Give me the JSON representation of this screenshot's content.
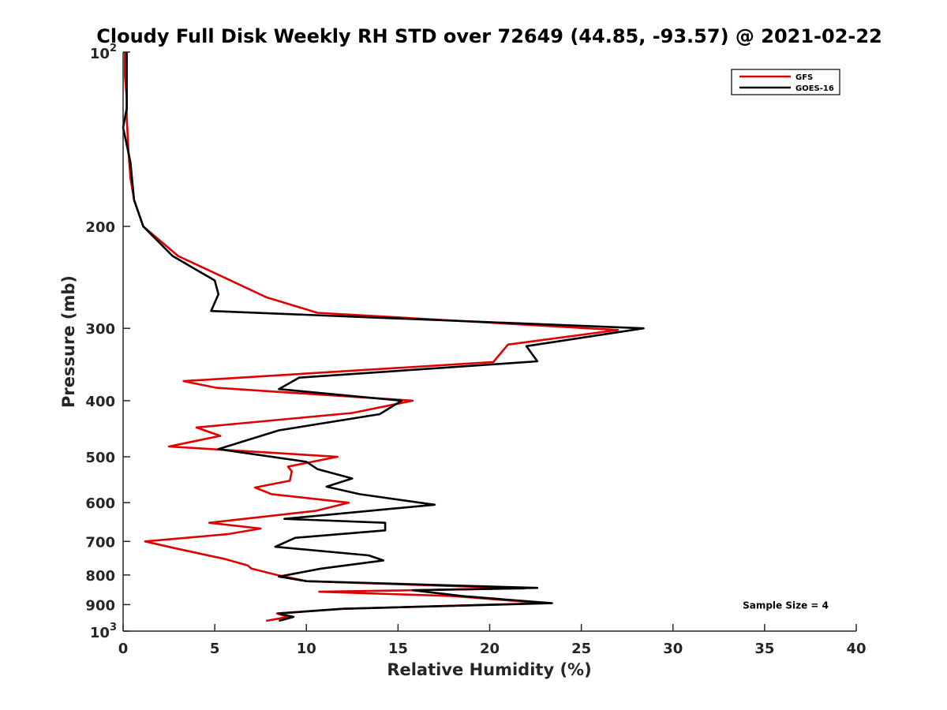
{
  "chart_data": {
    "type": "line",
    "title": "Cloudy Full Disk Weekly RH STD over 72649 (44.85, -93.57) @ 2021-02-22",
    "xlabel": "Relative Humidity (%)",
    "ylabel": "Pressure (mb)",
    "xlim": [
      0,
      40
    ],
    "ylim": [
      100,
      1000
    ],
    "y_scale": "log",
    "y_reversed": true,
    "grid": false,
    "legend_position": "top-right",
    "x_ticks": [
      {
        "value": 0,
        "label": "0"
      },
      {
        "value": 5,
        "label": "5"
      },
      {
        "value": 10,
        "label": "10"
      },
      {
        "value": 15,
        "label": "15"
      },
      {
        "value": 20,
        "label": "20"
      },
      {
        "value": 25,
        "label": "25"
      },
      {
        "value": 30,
        "label": "30"
      },
      {
        "value": 35,
        "label": "35"
      },
      {
        "value": 40,
        "label": "40"
      }
    ],
    "y_ticks": [
      {
        "value": 100,
        "base": "10",
        "exp": "2"
      },
      {
        "value": 200,
        "label": "200"
      },
      {
        "value": 300,
        "label": "300"
      },
      {
        "value": 400,
        "label": "400"
      },
      {
        "value": 500,
        "label": "500"
      },
      {
        "value": 600,
        "label": "600"
      },
      {
        "value": 700,
        "label": "700"
      },
      {
        "value": 800,
        "label": "800"
      },
      {
        "value": 900,
        "label": "900"
      },
      {
        "value": 1000,
        "base": "10",
        "exp": "3"
      }
    ],
    "series": [
      {
        "name": "GFS",
        "color": "#e00000",
        "points": [
          [
            0.1,
            100
          ],
          [
            0.1,
            110
          ],
          [
            0.2,
            120
          ],
          [
            0.2,
            130
          ],
          [
            0.3,
            150
          ],
          [
            0.4,
            165
          ],
          [
            0.6,
            180
          ],
          [
            1.1,
            200
          ],
          [
            3.0,
            225
          ],
          [
            5.5,
            245
          ],
          [
            7.8,
            265
          ],
          [
            10.6,
            282
          ],
          [
            27.0,
            302
          ],
          [
            21.0,
            320
          ],
          [
            20.2,
            343
          ],
          [
            3.3,
            370
          ],
          [
            5.1,
            380
          ],
          [
            15.8,
            400
          ],
          [
            12.5,
            420
          ],
          [
            4.0,
            445
          ],
          [
            5.3,
            460
          ],
          [
            2.5,
            480
          ],
          [
            11.7,
            500
          ],
          [
            9.0,
            520
          ],
          [
            9.2,
            530
          ],
          [
            9.1,
            550
          ],
          [
            7.2,
            565
          ],
          [
            8.1,
            580
          ],
          [
            12.3,
            600
          ],
          [
            10.5,
            620
          ],
          [
            4.7,
            650
          ],
          [
            7.5,
            665
          ],
          [
            5.7,
            680
          ],
          [
            1.2,
            700
          ],
          [
            2.9,
            720
          ],
          [
            5.5,
            750
          ],
          [
            6.8,
            770
          ],
          [
            7.0,
            780
          ],
          [
            8.4,
            800
          ],
          [
            10.0,
            820
          ],
          [
            21.9,
            844
          ],
          [
            10.7,
            855
          ],
          [
            18.0,
            870
          ],
          [
            23.0,
            895
          ],
          [
            12.0,
            915
          ],
          [
            8.4,
            932
          ],
          [
            9.0,
            945
          ],
          [
            7.8,
            960
          ]
        ]
      },
      {
        "name": "GOES-16",
        "color": "#000000",
        "points": [
          [
            0.2,
            100
          ],
          [
            0.2,
            110
          ],
          [
            0.2,
            125
          ],
          [
            0.0,
            135
          ],
          [
            0.4,
            155
          ],
          [
            0.6,
            180
          ],
          [
            1.1,
            200
          ],
          [
            2.7,
            225
          ],
          [
            5.0,
            248
          ],
          [
            5.2,
            262
          ],
          [
            4.8,
            280
          ],
          [
            28.4,
            300
          ],
          [
            22.0,
            322
          ],
          [
            22.6,
            342
          ],
          [
            9.6,
            365
          ],
          [
            8.5,
            382
          ],
          [
            15.2,
            400
          ],
          [
            14.0,
            422
          ],
          [
            8.5,
            450
          ],
          [
            5.2,
            485
          ],
          [
            10.0,
            510
          ],
          [
            10.6,
            525
          ],
          [
            12.5,
            545
          ],
          [
            11.1,
            563
          ],
          [
            12.9,
            580
          ],
          [
            17.0,
            605
          ],
          [
            8.8,
            640
          ],
          [
            14.3,
            650
          ],
          [
            14.3,
            670
          ],
          [
            9.4,
            690
          ],
          [
            8.3,
            715
          ],
          [
            13.4,
            740
          ],
          [
            14.2,
            755
          ],
          [
            10.8,
            780
          ],
          [
            8.5,
            805
          ],
          [
            10.0,
            820
          ],
          [
            22.6,
            842
          ],
          [
            15.8,
            850
          ],
          [
            18.5,
            870
          ],
          [
            23.4,
            895
          ],
          [
            12.0,
            915
          ],
          [
            8.5,
            932
          ],
          [
            9.3,
            945
          ],
          [
            8.5,
            960
          ]
        ]
      }
    ],
    "annotations": [
      {
        "text": "Sample Size = 4",
        "x": 36.0,
        "y": 900
      }
    ]
  }
}
